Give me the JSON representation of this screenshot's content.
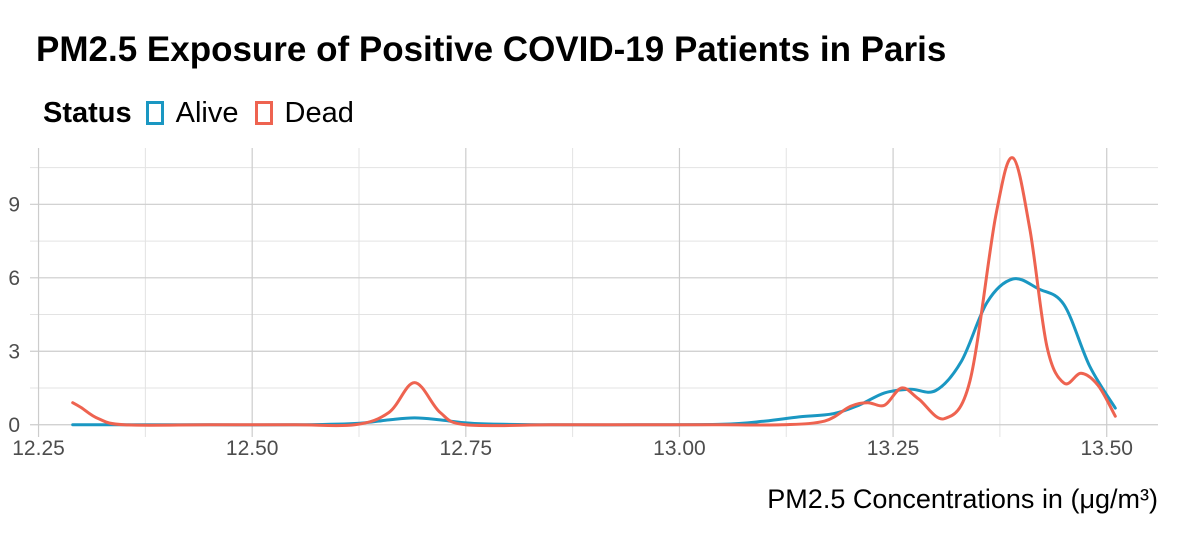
{
  "chart_data": {
    "type": "line",
    "title": "PM2.5 Exposure of Positive COVID-19 Patients in Paris",
    "xlabel": "PM2.5 Concentrations in (μg/m³)",
    "ylabel": "",
    "legend": {
      "title": "Status",
      "position": "top-left"
    },
    "xlim": [
      12.24,
      13.56
    ],
    "ylim": [
      -0.5,
      11.3
    ],
    "x_ticks": [
      {
        "value": 12.25,
        "label": "12.25"
      },
      {
        "value": 12.5,
        "label": "12.50"
      },
      {
        "value": 12.75,
        "label": "12.75"
      },
      {
        "value": 13.0,
        "label": "13.00"
      },
      {
        "value": 13.25,
        "label": "13.25"
      },
      {
        "value": 13.5,
        "label": "13.50"
      }
    ],
    "y_ticks": [
      {
        "value": 0,
        "label": "0"
      },
      {
        "value": 3,
        "label": "3"
      },
      {
        "value": 6,
        "label": "6"
      },
      {
        "value": 9,
        "label": "9"
      }
    ],
    "grid": true,
    "series": [
      {
        "name": "Alive",
        "color": "#1a97c2",
        "x": [
          12.29,
          12.35,
          12.45,
          12.55,
          12.62,
          12.66,
          12.69,
          12.72,
          12.76,
          12.85,
          12.95,
          13.05,
          13.1,
          13.14,
          13.18,
          13.21,
          13.24,
          13.27,
          13.3,
          13.33,
          13.36,
          13.39,
          13.42,
          13.45,
          13.48,
          13.51
        ],
        "y": [
          0.0,
          0.0,
          0.0,
          0.0,
          0.05,
          0.2,
          0.28,
          0.2,
          0.05,
          0.0,
          0.0,
          0.02,
          0.15,
          0.32,
          0.45,
          0.8,
          1.3,
          1.45,
          1.4,
          2.6,
          5.0,
          5.95,
          5.55,
          4.9,
          2.4,
          0.68
        ]
      },
      {
        "name": "Dead",
        "color": "#ee6350",
        "x": [
          12.29,
          12.3,
          12.32,
          12.35,
          12.45,
          12.55,
          12.62,
          12.66,
          12.69,
          12.72,
          12.75,
          12.85,
          12.95,
          13.05,
          13.12,
          13.17,
          13.2,
          13.22,
          13.24,
          13.26,
          13.28,
          13.31,
          13.34,
          13.37,
          13.39,
          13.41,
          13.43,
          13.45,
          13.47,
          13.49,
          13.51
        ],
        "y": [
          0.9,
          0.7,
          0.25,
          0.0,
          0.0,
          0.0,
          0.0,
          0.5,
          1.72,
          0.5,
          0.0,
          0.0,
          0.0,
          0.0,
          0.0,
          0.15,
          0.75,
          0.9,
          0.8,
          1.5,
          1.05,
          0.25,
          1.8,
          8.5,
          10.9,
          8.0,
          3.2,
          1.7,
          2.1,
          1.6,
          0.35
        ]
      }
    ]
  }
}
